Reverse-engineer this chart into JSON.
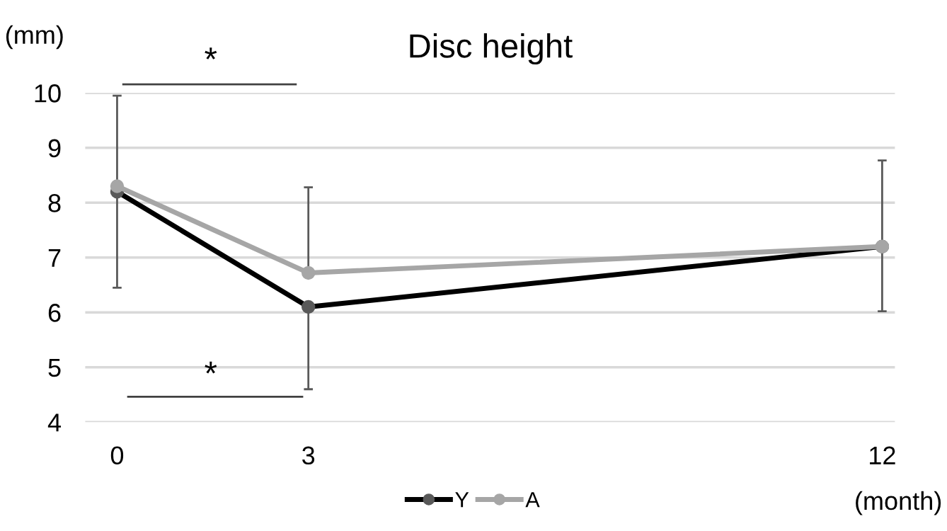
{
  "chart_data": {
    "type": "line",
    "title": "Disc height",
    "xlabel": "(month)",
    "ylabel": "(mm)",
    "x": [
      0,
      3,
      12
    ],
    "xlim": [
      -0.5,
      12.2
    ],
    "xticks": [
      0,
      3,
      12
    ],
    "ylim": [
      4,
      10
    ],
    "yticks": [
      4,
      5,
      6,
      7,
      8,
      9,
      10
    ],
    "grid": "y",
    "legend": "bottom",
    "marker": "circle",
    "line_style": "solid",
    "series": [
      {
        "name": "Y",
        "color": "#000000",
        "values": [
          8.2,
          6.1,
          7.2
        ],
        "errors": [
          null,
          [
            4.6,
            6.1
          ],
          null
        ]
      },
      {
        "name": "A",
        "color": "#a6a6a6",
        "values": [
          8.3,
          6.72,
          7.2
        ],
        "errors": [
          [
            6.45,
            9.95
          ],
          [
            6.72,
            8.28
          ],
          [
            6.02,
            8.77
          ]
        ]
      }
    ],
    "annotations": [
      "*",
      "*"
    ]
  }
}
